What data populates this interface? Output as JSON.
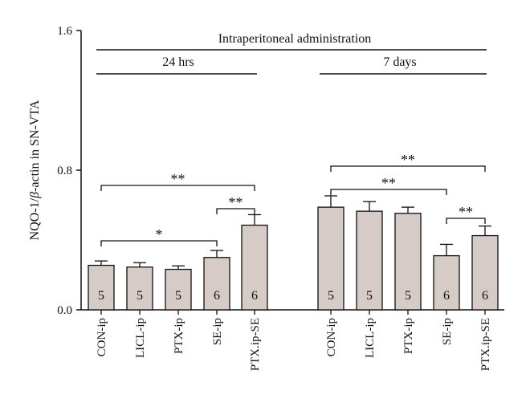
{
  "chart_data": {
    "type": "bar",
    "ylabel_prefix": "NQO-1/",
    "ylabel_beta": "β",
    "ylabel_suffix": "-actin in SN-VTA",
    "ylim": [
      0,
      1.6
    ],
    "yticks": [
      "0.0",
      "0.8",
      "1.6"
    ],
    "ytick_values": [
      0.0,
      0.8,
      1.6
    ],
    "grid": false,
    "bar_color": "#d6cbc6",
    "top_annotation": "Intraperitoneal administration",
    "groups": [
      {
        "label": "24 hrs",
        "categories": [
          "CON-ip",
          "LICL-ip",
          "PTX-ip",
          "SE-ip",
          "PTX.ip-SE"
        ],
        "values": [
          0.255,
          0.245,
          0.232,
          0.3,
          0.485
        ],
        "errors": [
          0.025,
          0.025,
          0.02,
          0.04,
          0.06
        ],
        "n": [
          "5",
          "5",
          "5",
          "6",
          "6"
        ]
      },
      {
        "label": "7 days",
        "categories": [
          "CON-ip",
          "LICL-ip",
          "PTX-ip",
          "SE-ip",
          "PTX.ip-SE"
        ],
        "values": [
          0.588,
          0.565,
          0.553,
          0.31,
          0.425
        ],
        "errors": [
          0.065,
          0.055,
          0.035,
          0.065,
          0.055
        ],
        "n": [
          "5",
          "5",
          "5",
          "6",
          "6"
        ]
      }
    ],
    "significance": [
      {
        "group": 0,
        "from": 0,
        "to": 4,
        "label": "**"
      },
      {
        "group": 0,
        "from": 3,
        "to": 4,
        "label": "**"
      },
      {
        "group": 0,
        "from": 0,
        "to": 3,
        "label": "*"
      },
      {
        "group": 1,
        "from": 0,
        "to": 4,
        "label": "**"
      },
      {
        "group": 1,
        "from": 0,
        "to": 3,
        "label": "**"
      },
      {
        "group": 1,
        "from": 3,
        "to": 4,
        "label": "**"
      }
    ]
  }
}
